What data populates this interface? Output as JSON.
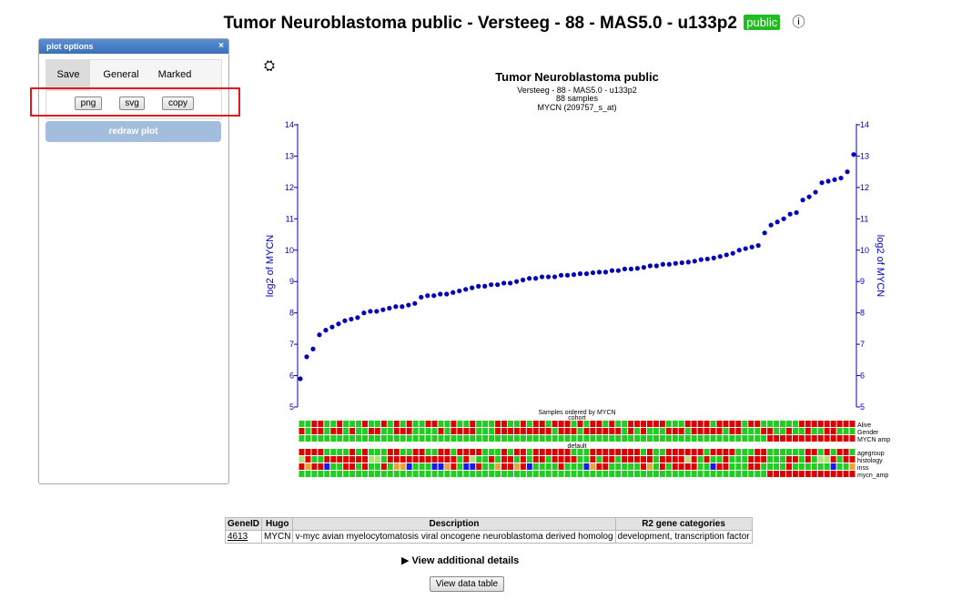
{
  "page": {
    "title": "Tumor Neuroblastoma public - Versteeg - 88 - MAS5.0 - u133p2",
    "badge": "public",
    "info_icon": "info-icon"
  },
  "panel": {
    "title": "plot options",
    "close": "×",
    "tabs": [
      {
        "label": "Save",
        "active": true
      },
      {
        "label": "General",
        "active": false
      },
      {
        "label": "Marked",
        "active": false
      }
    ],
    "buttons": {
      "png": "png",
      "svg": "svg",
      "copy": "copy"
    },
    "redraw": "redraw plot"
  },
  "settings_icon": "gear-icon",
  "chart_data": {
    "type": "scatter",
    "title": "Tumor Neuroblastoma public",
    "subtitle_lines": [
      "Versteeg - 88 - MAS5.0 - u133p2",
      "88 samples",
      "MYCN (209757_s_at)"
    ],
    "ylabel": "log2 of MYCN",
    "xlabel": "Samples ordered by MYCN",
    "ylim": [
      5,
      14
    ],
    "yticks": [
      "5",
      "6",
      "7",
      "8",
      "9",
      "10",
      "11",
      "12",
      "13",
      "14"
    ],
    "point_color": "#0000bb",
    "axis_color": "#0000bb",
    "values": [
      5.9,
      6.6,
      6.85,
      7.3,
      7.45,
      7.55,
      7.65,
      7.75,
      7.8,
      7.85,
      8.0,
      8.05,
      8.05,
      8.1,
      8.15,
      8.2,
      8.2,
      8.25,
      8.3,
      8.5,
      8.55,
      8.55,
      8.6,
      8.6,
      8.65,
      8.7,
      8.75,
      8.8,
      8.85,
      8.85,
      8.9,
      8.9,
      8.95,
      8.95,
      9.0,
      9.05,
      9.1,
      9.1,
      9.15,
      9.15,
      9.15,
      9.2,
      9.2,
      9.22,
      9.25,
      9.25,
      9.28,
      9.3,
      9.3,
      9.35,
      9.35,
      9.4,
      9.4,
      9.42,
      9.45,
      9.5,
      9.5,
      9.55,
      9.55,
      9.58,
      9.6,
      9.62,
      9.65,
      9.7,
      9.72,
      9.75,
      9.8,
      9.85,
      9.9,
      10.0,
      10.05,
      10.1,
      10.15,
      10.55,
      10.8,
      10.9,
      11.0,
      11.15,
      11.2,
      11.6,
      11.7,
      11.85,
      12.15,
      12.2,
      12.25,
      12.3,
      12.5,
      13.05
    ],
    "track_groups": [
      {
        "title": "cohort",
        "tracks": [
          "Alive",
          "Gender",
          "MYCN amp"
        ]
      },
      {
        "title": "default",
        "tracks": [
          "agegroup",
          "histology",
          "inss",
          "mycn_amp"
        ]
      }
    ],
    "track_colors": {
      "red": "#dd0000",
      "green": "#22cc22",
      "blue": "#1a1aee",
      "orange": "#e8a33a",
      "light": "#b3e07a"
    }
  },
  "table": {
    "headers": [
      "GeneID",
      "Hugo",
      "Description",
      "R2 gene categories"
    ],
    "rows": [
      [
        "4613",
        "MYCN",
        "v-myc avian myelocytomatosis viral oncogene neuroblastoma derived homolog",
        "development, transcription factor"
      ]
    ]
  },
  "details_label": "View additional details",
  "view_table_label": "View data table"
}
